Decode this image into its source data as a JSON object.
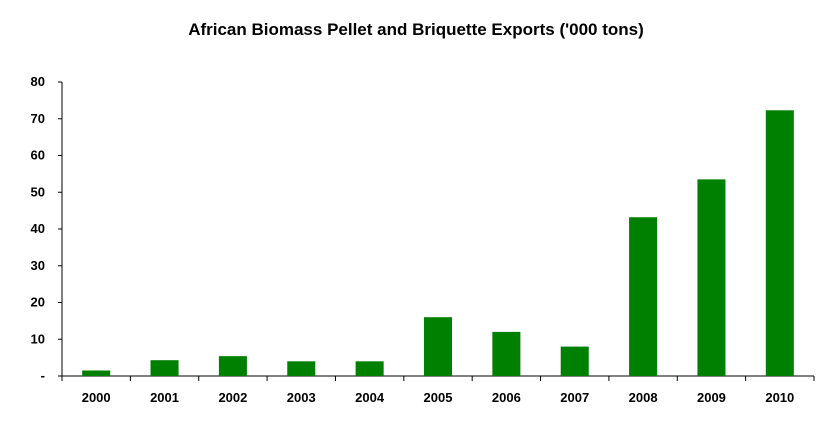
{
  "chart_data": {
    "type": "bar",
    "title": "African Biomass Pellet and Briquette Exports ('000 tons)",
    "categories": [
      "2000",
      "2001",
      "2002",
      "2003",
      "2004",
      "2005",
      "2006",
      "2007",
      "2008",
      "2009",
      "2010"
    ],
    "values": [
      1.5,
      4.3,
      5.4,
      4,
      4,
      16,
      12,
      8,
      43.2,
      53.5,
      72.3
    ],
    "ylim": [
      0,
      80
    ],
    "yticks": [
      "-",
      "10",
      "20",
      "30",
      "40",
      "50",
      "60",
      "70",
      "80"
    ],
    "xlabel": "",
    "ylabel": "",
    "grid": false,
    "legend": "none",
    "bar_color": "#008000"
  }
}
